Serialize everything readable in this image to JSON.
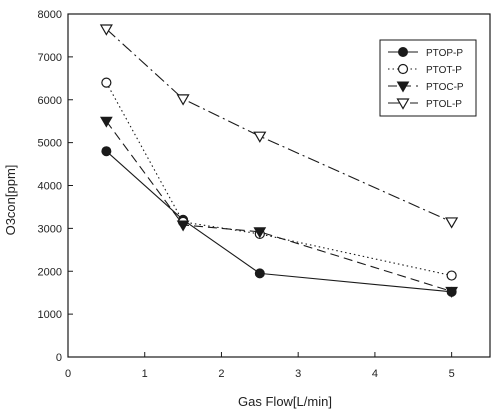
{
  "chart_data": {
    "type": "line",
    "xlabel": "Gas Flow[L/min]",
    "ylabel": "O3con[ppm]",
    "xlim": [
      0,
      5.5
    ],
    "ylim": [
      0,
      8000
    ],
    "xticks": [
      0,
      1,
      2,
      3,
      4,
      5
    ],
    "yticks": [
      0,
      1000,
      2000,
      3000,
      4000,
      5000,
      6000,
      7000,
      8000
    ],
    "grid": false,
    "legend_position": "top-right",
    "series": [
      {
        "name": "PTOP-P",
        "marker": "filled-circle",
        "line": "solid",
        "color": "#1a1a1a",
        "x": [
          0.5,
          1.5,
          2.5,
          5
        ],
        "y": [
          4800,
          3200,
          1950,
          1520
        ]
      },
      {
        "name": "PTOT-P",
        "marker": "open-circle",
        "line": "dotted",
        "color": "#1a1a1a",
        "x": [
          0.5,
          1.5,
          2.5,
          5
        ],
        "y": [
          6400,
          3150,
          2870,
          1900
        ]
      },
      {
        "name": "PTOC-P",
        "marker": "filled-triangle-down",
        "line": "dashed",
        "color": "#1a1a1a",
        "x": [
          0.5,
          1.5,
          2.5,
          5
        ],
        "y": [
          5500,
          3080,
          2920,
          1530
        ]
      },
      {
        "name": "PTOL-P",
        "marker": "open-triangle-down",
        "line": "dashdot",
        "color": "#1a1a1a",
        "x": [
          0.5,
          1.5,
          2.5,
          5
        ],
        "y": [
          7650,
          6020,
          5150,
          3150
        ]
      }
    ]
  }
}
